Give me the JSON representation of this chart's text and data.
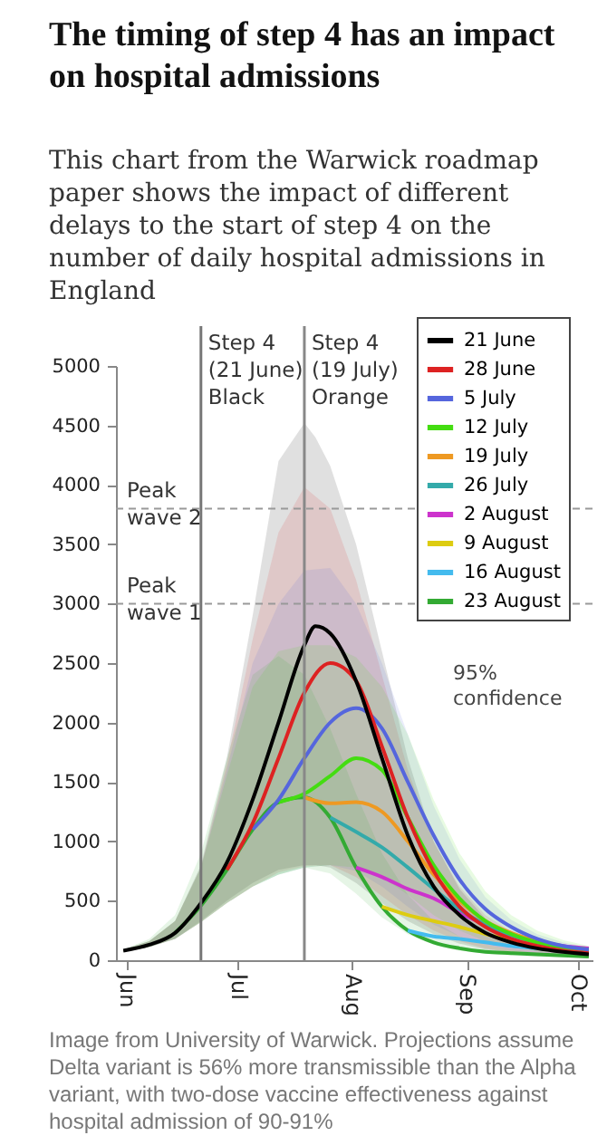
{
  "chart_data": {
    "type": "line",
    "title": "The timing of step 4 has an impact on hospital admissions",
    "subtitle": "This chart from the Warwick roadmap paper shows the impact of different delays to the start of step 4 on the number of daily hospital admissions in England",
    "x": [
      "--05-31",
      "--06-07",
      "--06-14",
      "--06-21",
      "--06-28",
      "--07-05",
      "--07-12",
      "--07-19",
      "--07-26",
      "--08-02",
      "--08-09",
      "--08-16",
      "--08-23",
      "--08-30",
      "--09-06",
      "--09-13",
      "--09-20",
      "--09-27",
      "--10-04"
    ],
    "series": [
      {
        "name": "21 June",
        "color": "#000000",
        "x": [
          "--05-31",
          "--06-07",
          "--06-14",
          "--06-21",
          "--06-28",
          "--07-05",
          "--07-12",
          "--07-19",
          "--07-22",
          "--07-26",
          "--08-02",
          "--08-09",
          "--08-16",
          "--08-23",
          "--08-30",
          "--09-06",
          "--09-13",
          "--09-20",
          "--09-27",
          "--10-04"
        ],
        "values": [
          80,
          130,
          230,
          480,
          820,
          1350,
          2000,
          2650,
          2810,
          2750,
          2350,
          1700,
          1050,
          620,
          380,
          230,
          150,
          100,
          70,
          50
        ],
        "upper": [
          90,
          160,
          330,
          800,
          1700,
          2900,
          4200,
          4520,
          4400,
          4160,
          3500,
          2600,
          1700,
          1000,
          600,
          350,
          220,
          150,
          110,
          80
        ],
        "lower": [
          70,
          110,
          180,
          330,
          500,
          650,
          760,
          800,
          800,
          780,
          650,
          480,
          330,
          220,
          140,
          90,
          60,
          40,
          30,
          25
        ]
      },
      {
        "name": "28 June",
        "color": "#dd2222",
        "values": [
          null,
          null,
          null,
          null,
          760,
          1150,
          1700,
          2250,
          2500,
          2350,
          1800,
          1200,
          750,
          450,
          280,
          180,
          120,
          80,
          60
        ],
        "upper": [
          90,
          160,
          330,
          780,
          1650,
          2700,
          3600,
          3980,
          3800,
          3200,
          2400,
          1600,
          1000,
          620,
          380,
          240,
          160,
          110,
          80
        ],
        "lower": [
          70,
          110,
          180,
          320,
          480,
          620,
          740,
          790,
          800,
          700,
          540,
          380,
          250,
          160,
          100,
          65,
          45,
          35,
          30
        ]
      },
      {
        "name": "5 July",
        "color": "#5566dd",
        "values": [
          null,
          null,
          null,
          null,
          null,
          1100,
          1350,
          1700,
          2000,
          2120,
          1950,
          1500,
          1050,
          680,
          430,
          280,
          180,
          120,
          90
        ],
        "upper": [
          90,
          160,
          330,
          780,
          1600,
          2500,
          3000,
          3280,
          3300,
          3000,
          2500,
          1900,
          1300,
          850,
          530,
          340,
          220,
          150,
          110
        ],
        "lower": [
          70,
          110,
          180,
          320,
          480,
          620,
          720,
          780,
          800,
          750,
          620,
          450,
          300,
          200,
          130,
          85,
          60,
          45,
          35
        ]
      },
      {
        "name": "12 July",
        "color": "#44dd11",
        "values": [
          null,
          null,
          null,
          null,
          null,
          null,
          1330,
          1400,
          1550,
          1700,
          1600,
          1200,
          800,
          520,
          330,
          220,
          150,
          110,
          90
        ],
        "upper": [
          90,
          160,
          330,
          780,
          1550,
          2300,
          2600,
          2650,
          2650,
          2550,
          2300,
          1900,
          1350,
          900,
          580,
          380,
          250,
          170,
          120
        ],
        "lower": [
          70,
          110,
          180,
          320,
          480,
          620,
          720,
          780,
          800,
          780,
          700,
          550,
          380,
          250,
          160,
          110,
          75,
          55,
          40
        ]
      },
      {
        "name": "19 July",
        "color": "#ee9922",
        "values": [
          null,
          null,
          null,
          null,
          null,
          null,
          null,
          1370,
          1320,
          1330,
          1250,
          1000,
          720,
          500,
          330,
          230,
          160,
          110,
          90
        ]
      },
      {
        "name": "26 July",
        "color": "#33aaaa",
        "values": [
          null,
          null,
          null,
          null,
          null,
          null,
          null,
          null,
          1200,
          1080,
          950,
          780,
          600,
          430,
          300,
          210,
          150,
          110,
          90
        ]
      },
      {
        "name": "2 August",
        "color": "#cc33cc",
        "values": [
          null,
          null,
          null,
          null,
          null,
          null,
          null,
          null,
          null,
          780,
          700,
          600,
          520,
          400,
          300,
          220,
          160,
          120,
          100
        ]
      },
      {
        "name": "9 August",
        "color": "#ddcc11",
        "values": [
          null,
          null,
          null,
          null,
          null,
          null,
          null,
          null,
          null,
          null,
          450,
          380,
          330,
          280,
          220,
          170,
          130,
          null,
          null
        ]
      },
      {
        "name": "16 August",
        "color": "#44bbee",
        "values": [
          null,
          null,
          null,
          null,
          null,
          null,
          null,
          null,
          null,
          null,
          null,
          250,
          200,
          180,
          150,
          120,
          100,
          80,
          60
        ]
      },
      {
        "name": "23 August",
        "color": "#33aa33",
        "values": [
          null,
          null,
          230,
          460,
          760,
          1100,
          1330,
          1370,
          1200,
          780,
          450,
          250,
          150,
          100,
          70,
          60,
          50,
          40,
          30
        ],
        "upper": [
          90,
          180,
          380,
          900,
          1700,
          2400,
          2560,
          2400,
          1950,
          1400,
          900,
          550,
          330,
          200,
          130,
          90,
          65,
          50,
          40
        ],
        "lower": [
          70,
          110,
          180,
          320,
          480,
          620,
          720,
          780,
          730,
          560,
          360,
          220,
          130,
          80,
          55,
          40,
          30,
          25,
          20
        ]
      }
    ],
    "xlim": [
      "--05-29",
      "--10-05"
    ],
    "xticks": [
      {
        "value": "--06-01",
        "label": "Jun"
      },
      {
        "value": "--07-01",
        "label": "Jul"
      },
      {
        "value": "--08-01",
        "label": "Aug"
      },
      {
        "value": "--09-01",
        "label": "Sep"
      },
      {
        "value": "--10-01",
        "label": "Oct"
      }
    ],
    "ylim": [
      0,
      5000
    ],
    "yticks": [
      0,
      500,
      1000,
      1500,
      2000,
      2500,
      3000,
      3500,
      4000,
      4500,
      5000
    ],
    "line_style": "solid",
    "legend": "top right",
    "ref_lines": [
      {
        "axis": "x",
        "value": "--06-21",
        "label": "Step 4\n(21 June)\nBlack",
        "color": "#777777"
      },
      {
        "axis": "x",
        "value": "--07-19",
        "label": "Step 4\n(19 July)\nOrange",
        "color": "#888888"
      },
      {
        "axis": "y",
        "value": 3800,
        "label": "Peak\nwave 2",
        "color": "#999999",
        "line_style": "dashed"
      },
      {
        "axis": "y",
        "value": 3000,
        "label": "Peak\nwave 1",
        "color": "#999999",
        "line_style": "dashed"
      }
    ],
    "annotations": [
      "95% confidence",
      "Image from University of Warwick. Projections assume Delta variant is 56% more transmissible than the Alpha variant, with two-dose vaccine effectiveness against hospital admission of 90-91%"
    ]
  }
}
